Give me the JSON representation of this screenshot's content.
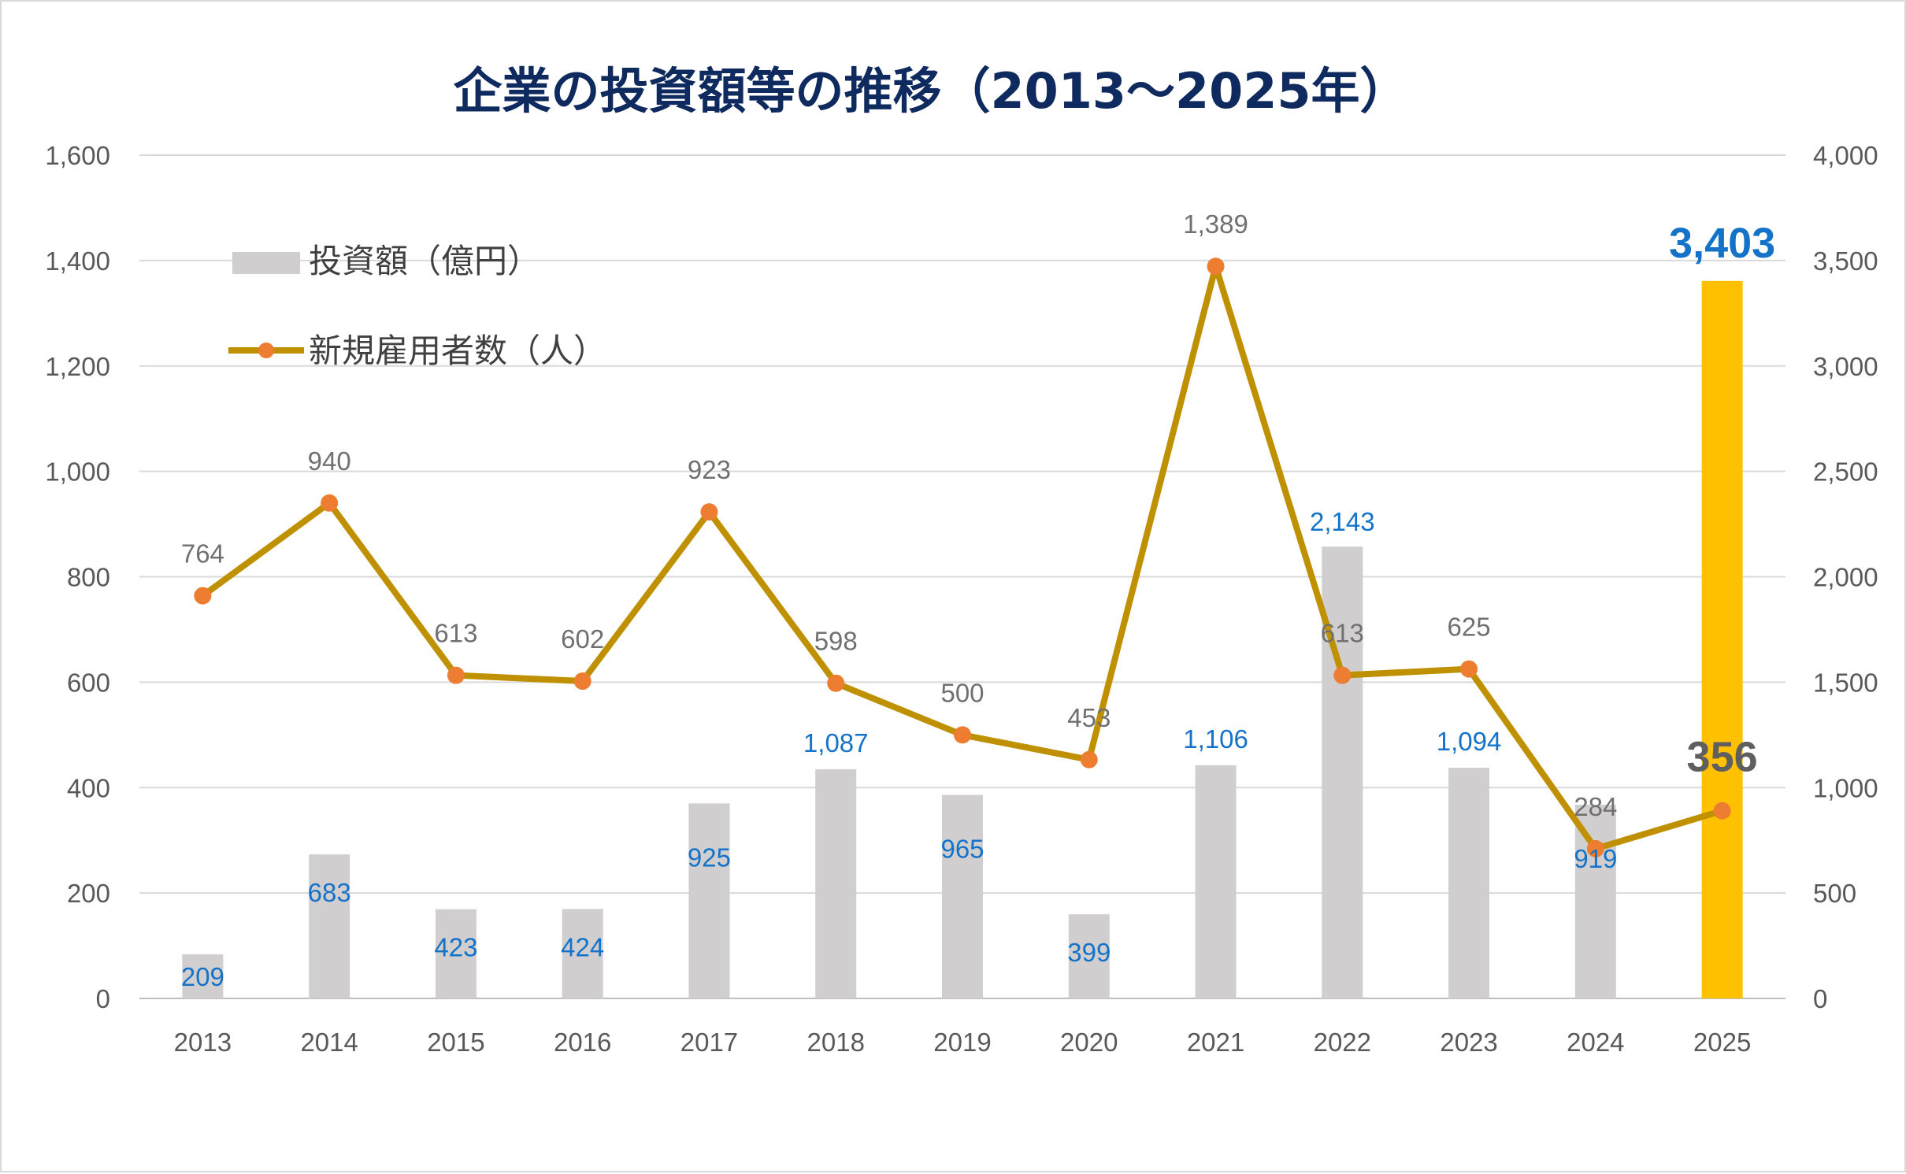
{
  "chart_data": {
    "type": "bar+line",
    "title": "企業の投資額等の推移（2013～2025年）",
    "categories": [
      "2013",
      "2014",
      "2015",
      "2016",
      "2017",
      "2018",
      "2019",
      "2020",
      "2021",
      "2022",
      "2023",
      "2024",
      "2025"
    ],
    "series": [
      {
        "name": "投資額（億円）",
        "type": "bar",
        "axis": "right",
        "values": [
          209,
          683,
          423,
          424,
          925,
          1087,
          965,
          399,
          1106,
          2143,
          1094,
          919,
          3403
        ],
        "labels": [
          "209",
          "683",
          "423",
          "424",
          "925",
          "1,087",
          "965",
          "399",
          "1,106",
          "2,143",
          "1,094",
          "919",
          "3,403"
        ],
        "color": "#d0cece",
        "highlight_color": "#ffc000",
        "label_color": "#1473c9"
      },
      {
        "name": "新規雇用者数（人）",
        "type": "line",
        "axis": "left",
        "values": [
          764,
          940,
          613,
          602,
          923,
          598,
          500,
          453,
          1389,
          613,
          625,
          284,
          356
        ],
        "labels": [
          "764",
          "940",
          "613",
          "602",
          "923",
          "598",
          "500",
          "453",
          "1,389",
          "613",
          "625",
          "284",
          "356"
        ],
        "color": "#bf9000",
        "marker_color": "#ed7d31",
        "label_color": "#707070"
      }
    ],
    "y_left": {
      "min": 0,
      "max": 1600,
      "step": 200,
      "ticks": [
        "0",
        "200",
        "400",
        "600",
        "800",
        "1,000",
        "1,200",
        "1,400",
        "1,600"
      ]
    },
    "y_right": {
      "min": 0,
      "max": 4000,
      "step": 500,
      "ticks": [
        "0",
        "500",
        "1,000",
        "1,500",
        "2,000",
        "2,500",
        "3,000",
        "3,500",
        "4,000"
      ]
    },
    "grid": true,
    "legend_position": "top-left",
    "highlight_category": "2025"
  }
}
